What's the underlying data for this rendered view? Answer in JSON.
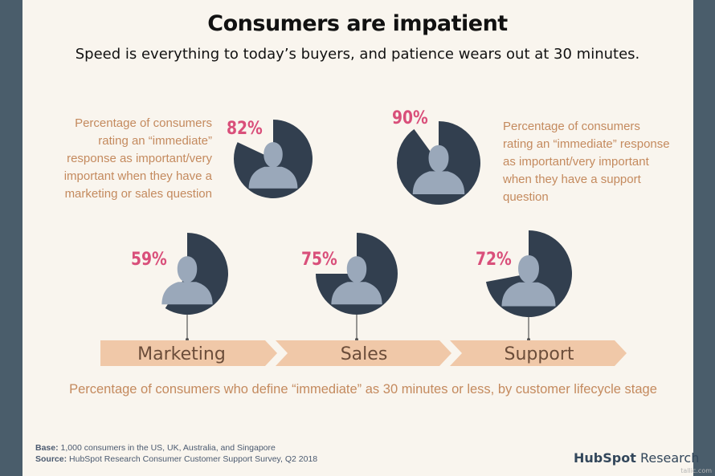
{
  "title": "Consumers are impatient",
  "subtitle": "Speed is everything to today’s buyers, and patience wears out at 30 minutes.",
  "colors": {
    "pie_dark": "#323f4f",
    "silhouette": "#9aa8ba",
    "percent": "#d94f7a",
    "text_tan": "#c48a5e",
    "arrow_fill": "#f0c8a8"
  },
  "top_left": {
    "description": "Percentage of consumers rating an “immediate” response as important/very important when they have a marketing or sales question"
  },
  "top_right": {
    "description": "Percentage of consumers rating an “immediate” response as important/very important when they have a support question"
  },
  "chart_data": {
    "type": "pie",
    "title": "Consumers are impatient",
    "series": [
      {
        "name": "Marketing or sales question – immediate response important",
        "value": 82,
        "label": "82%"
      },
      {
        "name": "Support question – immediate response important",
        "value": 90,
        "label": "90%"
      },
      {
        "name": "Marketing",
        "value": 59,
        "label": "59%"
      },
      {
        "name": "Sales",
        "value": 75,
        "label": "75%"
      },
      {
        "name": "Support",
        "value": 72,
        "label": "72%"
      }
    ],
    "stages": [
      "Marketing",
      "Sales",
      "Support"
    ],
    "caption": "Percentage of consumers who define “immediate” as 30 minutes or less, by customer lifecycle stage"
  },
  "footer": {
    "base_label": "Base:",
    "base_text": "1,000 consumers in the US, UK, Australia, and Singapore",
    "source_label": "Source:",
    "source_text": "HubSpot Research Consumer Customer Support Survey, Q2 2018",
    "brand_name": "HubSpot",
    "brand_suffix": "Research"
  },
  "watermark": "tallic.com"
}
